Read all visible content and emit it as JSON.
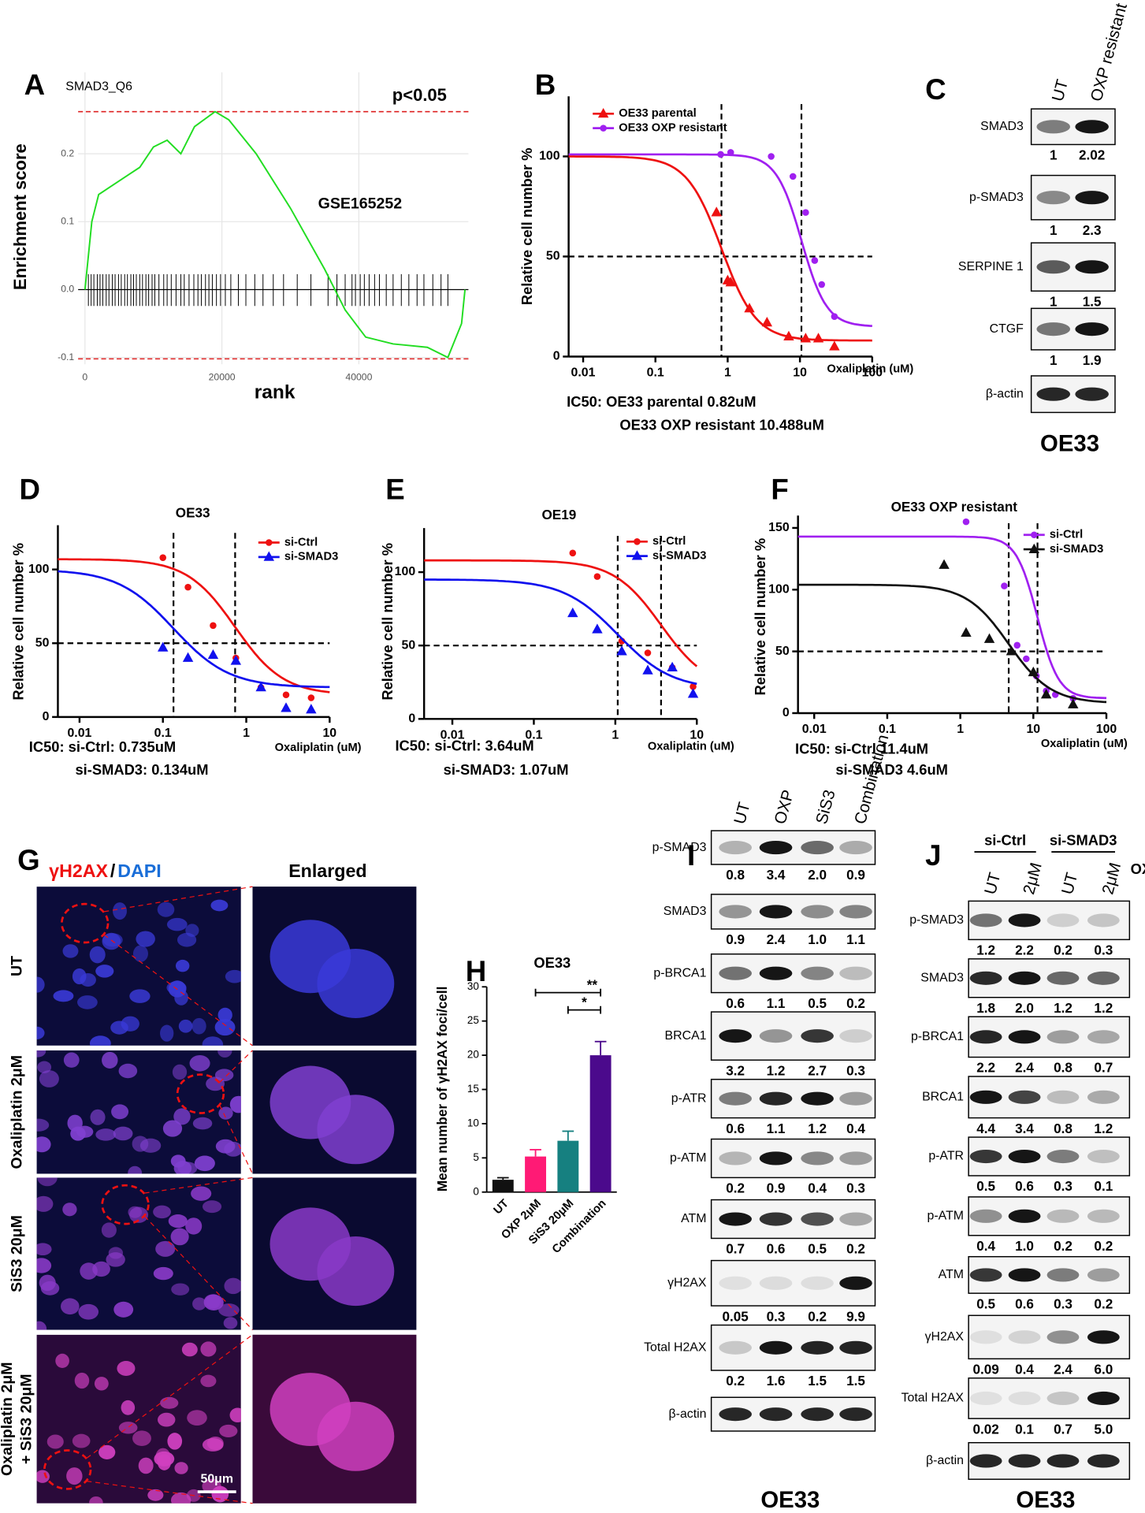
{
  "panel_labels": [
    "A",
    "B",
    "C",
    "D",
    "E",
    "F",
    "G",
    "H",
    "I",
    "J"
  ],
  "chart_data": [
    {
      "type": "line",
      "title": "SMAD3_Q6",
      "annotation": "p<0.05",
      "dataset": "GSE165252",
      "xlabel": "rank",
      "ylabel": "Enrichment score",
      "xlim": [
        -1000,
        56000
      ],
      "ylim": [
        -0.11,
        0.32
      ],
      "xticks": [
        0,
        20000,
        40000
      ],
      "yticks": [
        -0.1,
        {
          "value": 0,
          "label": "0.0"
        },
        0.1,
        0.2
      ],
      "grid": true,
      "x": [
        0,
        1000,
        2000,
        3500,
        5000,
        6500,
        8000,
        10000,
        12000,
        14000,
        16000,
        19000,
        21000,
        25000,
        30000,
        35000,
        38000,
        41000,
        45000,
        50000,
        53000,
        55000,
        55500
      ],
      "series": [
        {
          "color": "#22dd22",
          "values": [
            0,
            0.1,
            0.14,
            0.15,
            0.16,
            0.17,
            0.18,
            0.21,
            0.22,
            0.2,
            0.24,
            0.262,
            0.25,
            0.2,
            0.12,
            0.03,
            -0.03,
            -0.07,
            -0.08,
            -0.085,
            -0.1,
            -0.05,
            0
          ]
        }
      ],
      "hits": [
        500,
        900,
        1300,
        1800,
        2200,
        2600,
        3100,
        3500,
        4000,
        4400,
        4900,
        5300,
        5800,
        6200,
        6700,
        7100,
        7500,
        8000,
        8400,
        8900,
        9300,
        9800,
        10200,
        10800,
        11500,
        12000,
        12600,
        13300,
        14000,
        14500,
        15200,
        15900,
        16500,
        17000,
        17600,
        18100,
        18600,
        19200,
        19800,
        20500,
        21300,
        22400,
        23500,
        24800,
        26000,
        27500,
        29000,
        31000,
        33000,
        35500,
        36800,
        38000,
        39000,
        39500,
        40200,
        40800,
        41500,
        42300,
        43000,
        44000,
        45000,
        46200,
        47300,
        48500,
        49500,
        50800,
        52000,
        53000
      ],
      "ref_lines": {
        "y": [
          0.262,
          -0.102
        ]
      },
      "ref_color": "#dd2222"
    },
    {
      "type": "scatter",
      "log_x": true,
      "xlabel": "Oxaliplatin (uM)",
      "ylabel": "Relative cell number %",
      "xlim": [
        0.0063,
        100
      ],
      "ylim": [
        0,
        130
      ],
      "xticks": [
        0.01,
        0.1,
        1,
        10,
        100
      ],
      "yticks": [
        0,
        50,
        100
      ],
      "ref_lines": {
        "x": [
          0.82,
          10.488
        ],
        "y": [
          50
        ]
      },
      "note": [
        "IC50:  OE33 parental 0.82uM",
        "OE33 OXP resistant 10.488uM"
      ],
      "series": [
        {
          "name": "OE33 parental",
          "color": "#ee1111",
          "marker": "triangle",
          "x": [
            0.7,
            1,
            1.1,
            2,
            3.5,
            7,
            12,
            18,
            30
          ],
          "values": [
            72,
            38,
            37,
            24,
            17,
            10,
            9,
            9,
            5
          ],
          "fit": {
            "top": 100,
            "bottom": 8,
            "ic50": 0.82,
            "hill": 1.8
          }
        },
        {
          "name": "OE33 OXP resistant",
          "color": "#a020f0",
          "marker": "circle",
          "x": [
            0.8,
            1.1,
            4,
            8,
            12,
            16,
            20,
            30
          ],
          "values": [
            101,
            102,
            100,
            90,
            72,
            48,
            36,
            20
          ],
          "fit": {
            "top": 101,
            "bottom": 15,
            "ic50": 10.488,
            "hill": 2.5
          }
        }
      ]
    },
    {
      "type": "scatter",
      "log_x": true,
      "title": "OE33",
      "xlabel": "Oxaliplatin (uM)",
      "ylabel": "Relative cell number %",
      "xlim": [
        0.0055,
        10
      ],
      "ylim": [
        0,
        130
      ],
      "xticks": [
        0.01,
        0.1,
        1,
        10
      ],
      "yticks": [
        0,
        50,
        100
      ],
      "ref_lines": {
        "x": [
          0.134,
          0.735
        ],
        "y": [
          50
        ]
      },
      "note": [
        "IC50:  si-Ctrl: 0.735uM",
        "si-SMAD3: 0.134uM"
      ],
      "series": [
        {
          "name": "si-Ctrl",
          "color": "#ee1111",
          "marker": "circle",
          "x": [
            0.1,
            0.2,
            0.4,
            0.75,
            1.5,
            3,
            6
          ],
          "values": [
            108,
            88,
            62,
            40,
            20,
            15,
            13
          ],
          "fit": {
            "top": 107,
            "bottom": 15,
            "ic50": 0.735,
            "hill": 1.5
          }
        },
        {
          "name": "si-SMAD3",
          "color": "#1111ee",
          "marker": "triangle",
          "x": [
            0.1,
            0.2,
            0.4,
            0.75,
            1.5,
            3,
            6
          ],
          "values": [
            47,
            40,
            42,
            38,
            20,
            6,
            5
          ],
          "fit": {
            "top": 100,
            "bottom": 20,
            "ic50": 0.134,
            "hill": 1.3
          }
        }
      ]
    },
    {
      "type": "scatter",
      "log_x": true,
      "title": "OE19",
      "xlabel": "Oxaliplatin (uM)",
      "ylabel": "Relative cell number %",
      "xlim": [
        0.0045,
        10
      ],
      "ylim": [
        0,
        130
      ],
      "xticks": [
        0.01,
        0.1,
        1,
        10
      ],
      "yticks": [
        0,
        50,
        100
      ],
      "ref_lines": {
        "x": [
          1.07,
          3.64
        ],
        "y": [
          50
        ]
      },
      "note": [
        "IC50:  si-Ctrl: 3.64uM",
        "si-SMAD3: 1.07uM"
      ],
      "series": [
        {
          "name": "si-Ctrl",
          "color": "#ee1111",
          "marker": "circle",
          "x": [
            0.3,
            0.6,
            1.2,
            2.5,
            5,
            9
          ],
          "values": [
            113,
            97,
            53,
            45,
            35,
            22
          ],
          "fit": {
            "top": 108,
            "bottom": 20,
            "ic50": 3.64,
            "hill": 1.5
          }
        },
        {
          "name": "si-SMAD3",
          "color": "#1111ee",
          "marker": "triangle",
          "x": [
            0.3,
            0.6,
            1.2,
            2.5,
            5,
            9
          ],
          "values": [
            72,
            61,
            46,
            33,
            35,
            17
          ],
          "fit": {
            "top": 95,
            "bottom": 20,
            "ic50": 1.07,
            "hill": 1.3
          }
        }
      ]
    },
    {
      "type": "scatter",
      "log_x": true,
      "title": "OE33 OXP resistant",
      "xlabel": "Oxaliplatin (uM)",
      "ylabel": "Relative cell number %",
      "xlim": [
        0.006,
        100
      ],
      "ylim": [
        0,
        160
      ],
      "xticks": [
        0.01,
        0.1,
        1,
        10,
        100
      ],
      "yticks": [
        0,
        50,
        100,
        150
      ],
      "ref_lines": {
        "x": [
          4.6,
          11.4
        ],
        "y": [
          50
        ]
      },
      "note": [
        "IC50:  si-Ctrl 11.4uM",
        "si-SMAD3 4.6uM"
      ],
      "series": [
        {
          "name": "si-Ctrl",
          "color": "#a020f0",
          "marker": "circle",
          "x": [
            1.2,
            4,
            6,
            8,
            11,
            15,
            20,
            35
          ],
          "values": [
            155,
            103,
            55,
            44,
            30,
            18,
            15,
            12
          ],
          "fit": {
            "top": 143,
            "bottom": 12,
            "ic50": 11.4,
            "hill": 3
          }
        },
        {
          "name": "si-SMAD3",
          "color": "#111111",
          "marker": "triangle",
          "x": [
            0.6,
            1.2,
            2.5,
            5,
            10,
            15,
            35
          ],
          "values": [
            120,
            65,
            60,
            50,
            33,
            15,
            7
          ],
          "fit": {
            "top": 104,
            "bottom": 8,
            "ic50": 4.6,
            "hill": 1.5
          }
        }
      ]
    },
    {
      "type": "bar",
      "title": "OE33",
      "ylabel": "Mean number of γH2AX foci/cell",
      "categories": [
        "UT",
        "OXP 2μM",
        "SiS3 20μM",
        "Combination"
      ],
      "values": [
        1.8,
        5.2,
        7.5,
        20
      ],
      "errors": [
        0.3,
        1,
        1.4,
        2
      ],
      "colors": [
        "#111111",
        "#ff1a75",
        "#168080",
        "#4b0a8c"
      ],
      "ylim": [
        0,
        30
      ],
      "yticks": [
        0,
        5,
        10,
        15,
        20,
        25,
        30
      ],
      "significance": [
        "**",
        "*"
      ]
    }
  ],
  "images": {
    "title_parts": [
      "γH2AX",
      "/",
      "DAPI"
    ],
    "enlarged": "Enlarged",
    "rows": [
      [
        "UT"
      ],
      [
        "Oxaliplatin 2μM"
      ],
      [
        "SiS3 20μM"
      ],
      [
        "Oxaliplatin 2μM",
        "+ SiS3 20μM"
      ]
    ],
    "scale_bar": "50μm"
  },
  "blots": {
    "C": {
      "lanes": [
        "UT",
        "OXP resistant"
      ],
      "caption": "OE33",
      "rows": [
        {
          "label": "SMAD3",
          "values": [
            "1",
            "2.02"
          ]
        },
        {
          "label": "p-SMAD3",
          "values": [
            "1",
            "2.3"
          ]
        },
        {
          "label": "SERPINE 1",
          "values": [
            "1",
            "1.5"
          ]
        },
        {
          "label": "CTGF",
          "values": [
            "1",
            "1.9"
          ]
        },
        {
          "label": "β-actin"
        }
      ]
    },
    "I": {
      "lanes": [
        "UT",
        "OXP",
        "SiS3",
        "Combination"
      ],
      "caption": "OE33",
      "rows": [
        {
          "label": "p-SMAD3",
          "values": [
            "0.8",
            "3.4",
            "2.0",
            "0.9"
          ]
        },
        {
          "label": "SMAD3",
          "values": [
            "0.9",
            "2.4",
            "1.0",
            "1.1"
          ]
        },
        {
          "label": "p-BRCA1",
          "values": [
            "0.6",
            "1.1",
            "0.5",
            "0.2"
          ]
        },
        {
          "label": "BRCA1",
          "values": [
            "3.2",
            "1.2",
            "2.7",
            "0.3"
          ]
        },
        {
          "label": "p-ATR",
          "values": [
            "0.6",
            "1.1",
            "1.2",
            "0.4"
          ]
        },
        {
          "label": "p-ATM",
          "values": [
            "0.2",
            "0.9",
            "0.4",
            "0.3"
          ]
        },
        {
          "label": "ATM",
          "values": [
            "0.7",
            "0.6",
            "0.5",
            "0.2"
          ]
        },
        {
          "label": "γH2AX",
          "values": [
            "0.05",
            "0.3",
            "0.2",
            "9.9"
          ]
        },
        {
          "label": "Total H2AX",
          "values": [
            "0.2",
            "1.6",
            "1.5",
            "1.5"
          ]
        },
        {
          "label": "β-actin"
        }
      ]
    },
    "J": {
      "groups": [
        "si-Ctrl",
        "si-SMAD3"
      ],
      "treatment": "OXP",
      "lanes": [
        "UT",
        "2μM",
        "UT",
        "2μM"
      ],
      "caption": "OE33",
      "rows": [
        {
          "label": "p-SMAD3",
          "values": [
            "1.2",
            "2.2",
            "0.2",
            "0.3"
          ]
        },
        {
          "label": "SMAD3",
          "values": [
            "1.8",
            "2.0",
            "1.2",
            "1.2"
          ]
        },
        {
          "label": "p-BRCA1",
          "values": [
            "2.2",
            "2.4",
            "0.8",
            "0.7"
          ]
        },
        {
          "label": "BRCA1",
          "values": [
            "4.4",
            "3.4",
            "0.8",
            "1.2"
          ]
        },
        {
          "label": "p-ATR",
          "values": [
            "0.5",
            "0.6",
            "0.3",
            "0.1"
          ]
        },
        {
          "label": "p-ATM",
          "values": [
            "0.4",
            "1.0",
            "0.2",
            "0.2"
          ]
        },
        {
          "label": "ATM",
          "values": [
            "0.5",
            "0.6",
            "0.3",
            "0.2"
          ]
        },
        {
          "label": "γH2AX",
          "values": [
            "0.09",
            "0.4",
            "2.4",
            "6.0"
          ]
        },
        {
          "label": "Total H2AX",
          "values": [
            "0.02",
            "0.1",
            "0.7",
            "5.0"
          ]
        },
        {
          "label": "β-actin"
        }
      ]
    }
  }
}
